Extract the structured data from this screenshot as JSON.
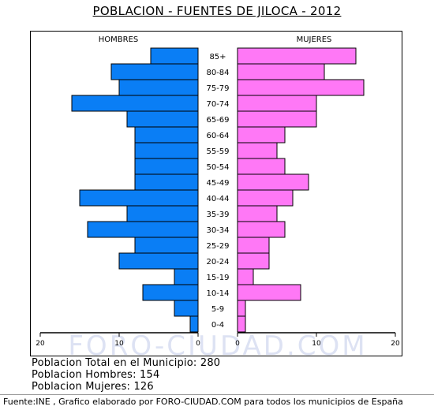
{
  "title": "POBLACION - FUENTES DE JILOCA - 2012",
  "stats": {
    "total": "Poblacion Total en el Municipio: 280",
    "hombres": "Poblacion Hombres: 154",
    "mujeres": "Poblacion Mujeres: 126"
  },
  "source": "Fuente:INE , Grafico elaborado por FORO-CIUDAD.COM para todos los municipios de España",
  "watermark": "FORO-CIUDAD.COM",
  "colors": {
    "hombres": "#0a7ef5",
    "mujeres": "#ff78f6",
    "watermark": "#dde2f3"
  },
  "chart_data": {
    "type": "bar",
    "orientation": "horizontal-pyramid",
    "categories": [
      "85+",
      "80-84",
      "75-79",
      "70-74",
      "65-69",
      "60-64",
      "55-59",
      "50-54",
      "45-49",
      "40-44",
      "35-39",
      "30-34",
      "25-29",
      "20-24",
      "15-19",
      "10-14",
      "5-9",
      "0-4"
    ],
    "series": [
      {
        "name": "HOMBRES",
        "values": [
          6,
          11,
          10,
          16,
          9,
          8,
          8,
          8,
          8,
          15,
          9,
          14,
          8,
          10,
          3,
          7,
          3,
          1
        ]
      },
      {
        "name": "MUJERES",
        "values": [
          15,
          11,
          16,
          10,
          10,
          6,
          5,
          6,
          9,
          7,
          5,
          6,
          4,
          4,
          2,
          8,
          1,
          1
        ]
      }
    ],
    "xlim": [
      0,
      20
    ],
    "xticks": [
      "20",
      "10",
      "0",
      "0",
      "10",
      "20"
    ]
  }
}
